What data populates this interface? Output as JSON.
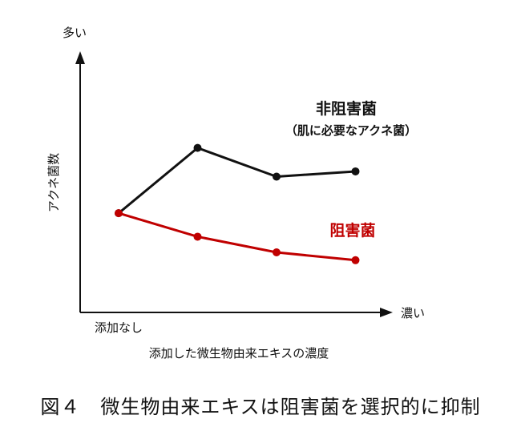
{
  "chart_data": {
    "type": "line",
    "categories": [
      "添加なし",
      "",
      "",
      ""
    ],
    "series": [
      {
        "name": "非阻害菌",
        "note": "（肌に必要なアクネ菌）",
        "values": [
          3.8,
          6.3,
          5.2,
          5.4
        ],
        "color": "#111111"
      },
      {
        "name": "阻害菌",
        "values": [
          3.8,
          2.9,
          2.3,
          2.0
        ],
        "color": "#c00000"
      }
    ],
    "ylabel": "アクネ菌数",
    "y_axis_top_label": "多い",
    "x_axis_end_label": "濃い",
    "xlabel": "添加した微生物由来エキスの濃度",
    "ylim": [
      0,
      10
    ],
    "grid": false,
    "tick_marks": false
  },
  "caption": "図４　微生物由来エキスは阻害菌を選択的に抑制"
}
